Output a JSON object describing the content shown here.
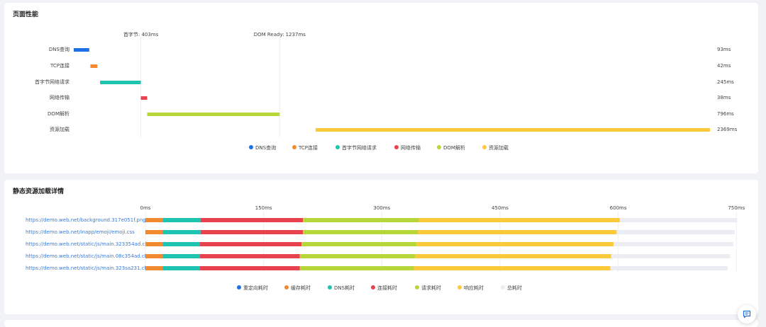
{
  "page": {
    "section1_title": "页面性能",
    "section2_title": "静态资源加载详情"
  },
  "chart_data": [
    {
      "type": "bar",
      "orientation": "horizontal",
      "subtype": "waterfall",
      "unit": "ms",
      "markers": [
        {
          "label": "首字节: 403ms",
          "value": 403
        },
        {
          "label": "DOM Ready: 1237ms",
          "value": 1237
        }
      ],
      "categories": [
        "DNS查询",
        "TCP连接",
        "首字节网络请求",
        "网络传输",
        "DOM解析",
        "资源加载"
      ],
      "starts": [
        0,
        100,
        158,
        403,
        441,
        1453
      ],
      "values": [
        93,
        42,
        245,
        38,
        796,
        2369
      ],
      "value_labels": [
        "93ms",
        "42ms",
        "245ms",
        "38ms",
        "796ms",
        "2369ms"
      ],
      "colors": [
        "#1e6fe8",
        "#f28a30",
        "#1ec4b0",
        "#e8424e",
        "#b7d63a",
        "#fcc93a"
      ],
      "xlim": [
        0,
        3822
      ],
      "legend": {
        "position": "bottom",
        "items": [
          "DNS查询",
          "TCP连接",
          "首字节网络请求",
          "网络传输",
          "DOM解析",
          "资源加载"
        ]
      }
    },
    {
      "type": "bar",
      "orientation": "horizontal",
      "stacked": true,
      "unit": "ms",
      "xlim": [
        0,
        750
      ],
      "x_ticks": [
        "0ms",
        "150ms",
        "300ms",
        "450ms",
        "600ms",
        "750ms"
      ],
      "x_tick_values": [
        0,
        150,
        300,
        450,
        600,
        750
      ],
      "categories": [
        "https://demo.web.net/background.317e051f.png",
        "https://demo.web.net/inapp/emoji/emoji.css",
        "https://demo.web.net/static/js/main.323354ad.chu...",
        "https://demo.web.net/static/js/main.08c354ad.chu...",
        "https://demo.web.net/static/js/main.323sa231.chu..."
      ],
      "series": [
        {
          "name": "重定向耗时",
          "color": "#1e6fe8",
          "values": [
            0,
            0,
            0,
            0,
            0
          ]
        },
        {
          "name": "缓存耗时",
          "color": "#f28a30",
          "values": [
            22,
            22,
            22,
            22,
            22
          ]
        },
        {
          "name": "DNS耗时",
          "color": "#1ec4b0",
          "values": [
            48,
            48,
            47,
            47,
            47
          ]
        },
        {
          "name": "连接耗时",
          "color": "#e8424e",
          "values": [
            130,
            130,
            129,
            127,
            127
          ]
        },
        {
          "name": "请求耗时",
          "color": "#b7d63a",
          "values": [
            147,
            146,
            146,
            146,
            145
          ]
        },
        {
          "name": "响应耗时",
          "color": "#fcc93a",
          "values": [
            255,
            252,
            250,
            249,
            249
          ]
        }
      ],
      "totals": {
        "name": "总耗时",
        "color": "#ececf3",
        "values": [
          751,
          748,
          746,
          742,
          739
        ]
      },
      "legend": {
        "position": "bottom",
        "items": [
          "重定向耗时",
          "缓存耗时",
          "DNS耗时",
          "连接耗时",
          "请求耗时",
          "响应耗时",
          "总耗时"
        ]
      }
    }
  ]
}
